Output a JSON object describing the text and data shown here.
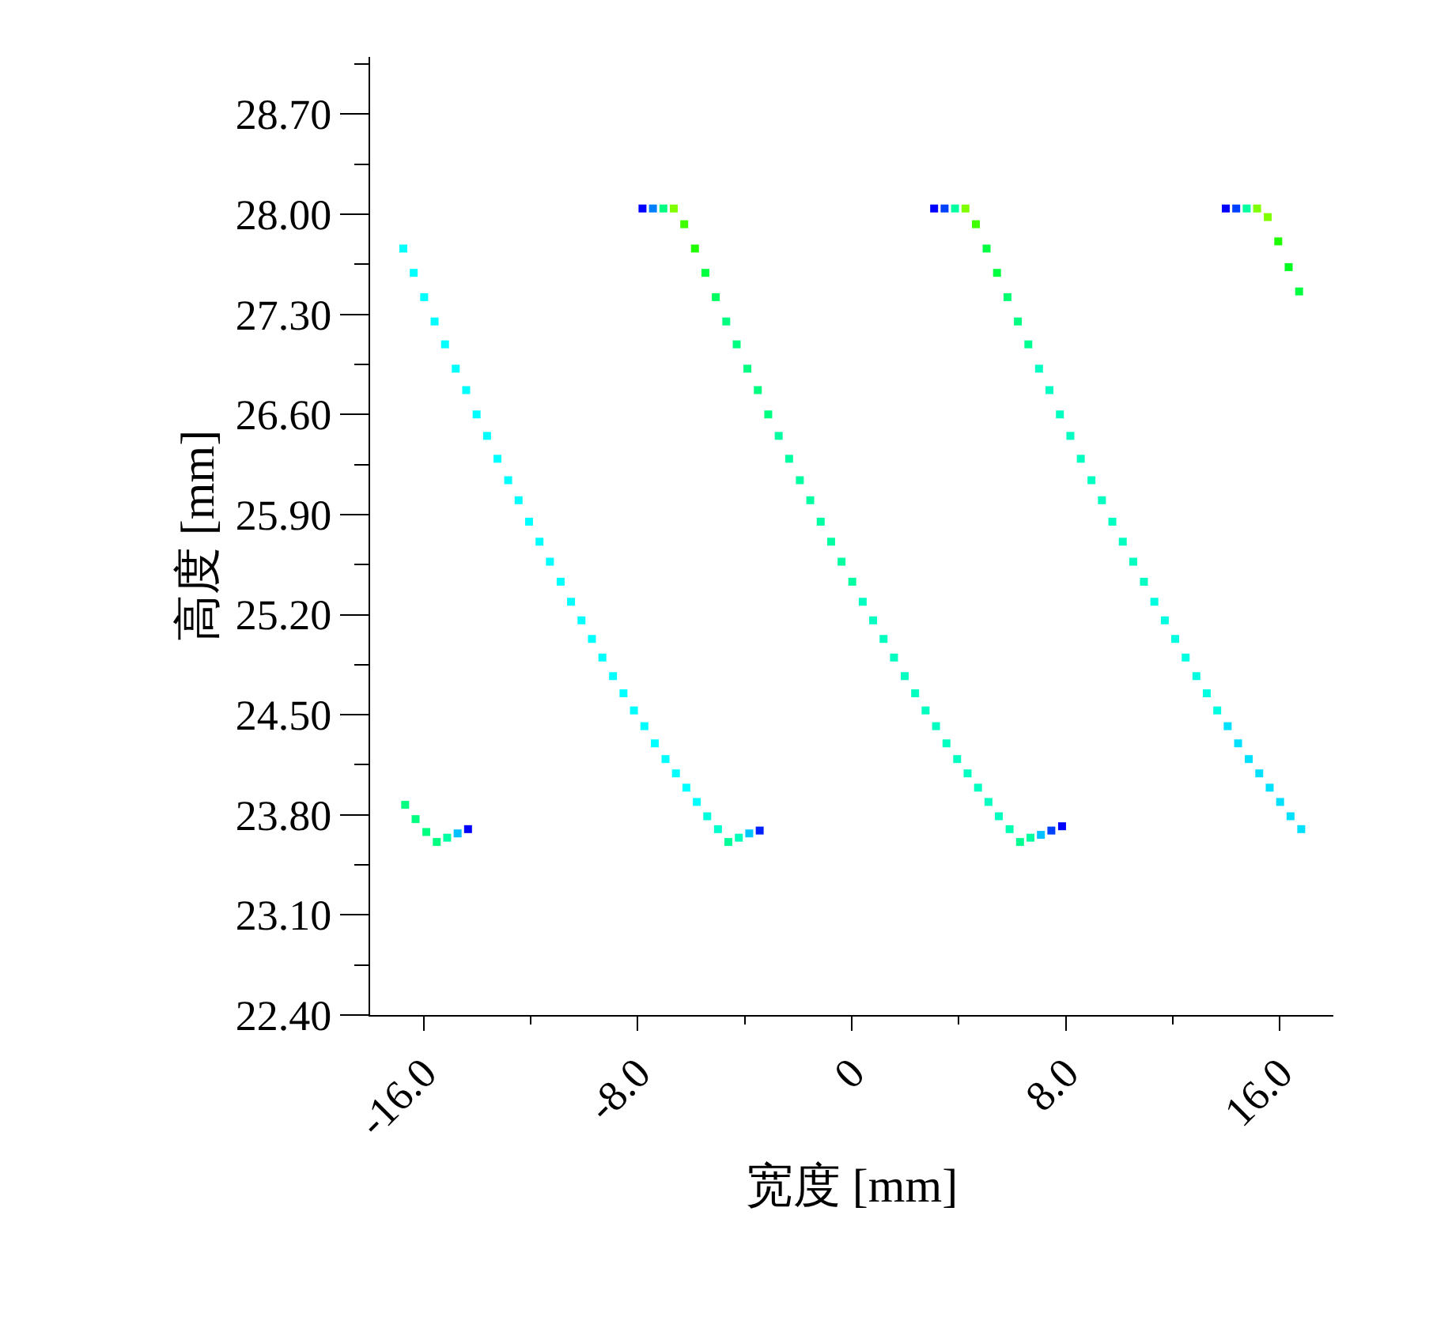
{
  "chart_data": {
    "type": "scatter",
    "xlabel": "宽度 [mm]",
    "ylabel": "高度 [mm]",
    "xlim": [
      -18,
      18
    ],
    "xticks": [
      {
        "value": -16,
        "label": "-16.0"
      },
      {
        "value": -12,
        "label": null
      },
      {
        "value": -8,
        "label": "-8.0"
      },
      {
        "value": -4,
        "label": null
      },
      0,
      {
        "value": 4,
        "label": null
      },
      {
        "value": 8,
        "label": "8.0"
      },
      {
        "value": 12,
        "label": null
      },
      {
        "value": 16,
        "label": "16.0"
      }
    ],
    "ylim": [
      22.4,
      29.1
    ],
    "yticks": [
      {
        "value": 22.4,
        "label": "22.40"
      },
      {
        "value": 22.75,
        "label": null
      },
      {
        "value": 23.1,
        "label": "23.10"
      },
      {
        "value": 23.45,
        "label": null
      },
      {
        "value": 23.8,
        "label": "23.80"
      },
      {
        "value": 24.15,
        "label": null
      },
      {
        "value": 24.5,
        "label": "24.50"
      },
      {
        "value": 24.85,
        "label": null
      },
      {
        "value": 25.2,
        "label": "25.20"
      },
      {
        "value": 25.55,
        "label": null
      },
      {
        "value": 25.9,
        "label": "25.90"
      },
      {
        "value": 26.25,
        "label": null
      },
      {
        "value": 26.6,
        "label": "26.60"
      },
      {
        "value": 26.95,
        "label": null
      },
      {
        "value": 27.3,
        "label": "27.30"
      },
      {
        "value": 27.65,
        "label": null
      },
      {
        "value": 28.0,
        "label": "28.00"
      },
      {
        "value": 28.35,
        "label": null
      },
      {
        "value": 28.7,
        "label": "28.70"
      },
      {
        "value": 29.05,
        "label": null
      }
    ],
    "marker": "square",
    "series": [
      {
        "x": [
          -16.69,
          -16.3,
          -15.9,
          -15.51,
          -15.12,
          -14.73,
          -14.34
        ],
        "values": [
          23.87,
          23.77,
          23.68,
          23.61,
          23.64,
          23.67,
          23.7
        ],
        "colors": [
          "#00ff80",
          "#00ff80",
          "#00ff80",
          "#00ff80",
          "#00ffa0",
          "#00c0ff",
          "#0000ff"
        ]
      },
      {
        "x": [
          -16.76,
          -16.37,
          -15.98,
          -15.59,
          -15.2,
          -14.8,
          -14.41,
          -14.02,
          -13.63,
          -13.24,
          -12.84,
          -12.45,
          -12.06,
          -11.67,
          -11.28,
          -10.88,
          -10.49,
          -10.1,
          -9.71,
          -9.32,
          -8.92,
          -8.53,
          -8.14,
          -7.75,
          -7.36,
          -6.96,
          -6.57,
          -6.18,
          -5.79,
          -5.4,
          -5.0,
          -4.61,
          -4.22,
          -3.83,
          -3.44
        ],
        "values": [
          27.76,
          27.59,
          27.42,
          27.25,
          27.09,
          26.92,
          26.77,
          26.6,
          26.45,
          26.29,
          26.14,
          26.0,
          25.85,
          25.71,
          25.57,
          25.43,
          25.29,
          25.16,
          25.03,
          24.9,
          24.77,
          24.65,
          24.53,
          24.42,
          24.3,
          24.19,
          24.09,
          23.99,
          23.89,
          23.79,
          23.7,
          23.61,
          23.64,
          23.67,
          23.69
        ],
        "colors": [
          "#00ffff",
          "#00ffff",
          "#00ffff",
          "#00ffff",
          "#00ffff",
          "#00ffff",
          "#00ffff",
          "#00ffff",
          "#00ffff",
          "#00ffff",
          "#00ffff",
          "#00ffff",
          "#00ffff",
          "#00ffff",
          "#00ffff",
          "#00ffff",
          "#00ffff",
          "#00ffff",
          "#00ffff",
          "#00ffff",
          "#00ffff",
          "#00ffff",
          "#00ffff",
          "#00ffff",
          "#00ffff",
          "#00ffff",
          "#00ffff",
          "#00ffff",
          "#00ffff",
          "#00ffdd",
          "#00ffcc",
          "#00ff99",
          "#00ffbb",
          "#00c8ff",
          "#0020ff"
        ]
      },
      {
        "x": [
          -7.82,
          -7.43,
          -7.04,
          -6.65,
          -6.26,
          -5.86,
          -5.47,
          -5.08,
          -4.69,
          -4.3,
          -3.9,
          -3.51,
          -3.12,
          -2.73,
          -2.34,
          -1.94,
          -1.55,
          -1.16,
          -0.77,
          -0.38,
          0.02,
          0.41,
          0.8,
          1.19,
          1.58,
          1.98,
          2.37,
          2.76,
          3.15,
          3.54,
          3.94,
          4.33,
          4.72,
          5.11,
          5.5,
          5.9,
          6.29,
          6.68,
          7.07,
          7.46,
          7.86
        ],
        "values": [
          28.04,
          28.04,
          28.04,
          28.04,
          27.93,
          27.76,
          27.59,
          27.42,
          27.25,
          27.09,
          26.92,
          26.77,
          26.6,
          26.45,
          26.29,
          26.14,
          26.0,
          25.85,
          25.71,
          25.57,
          25.43,
          25.29,
          25.16,
          25.03,
          24.9,
          24.77,
          24.65,
          24.53,
          24.42,
          24.3,
          24.19,
          24.09,
          23.99,
          23.89,
          23.79,
          23.7,
          23.61,
          23.64,
          23.66,
          23.69,
          23.72
        ],
        "colors": [
          "#0000ff",
          "#0080ff",
          "#00ff80",
          "#80ff00",
          "#40ff00",
          "#20ff00",
          "#00ff40",
          "#00ff60",
          "#00ff80",
          "#00ff80",
          "#00ff80",
          "#00ff80",
          "#00ff80",
          "#00ffa0",
          "#00ffa0",
          "#00ffa0",
          "#00ffa0",
          "#00ffa0",
          "#00ffa0",
          "#00ffa0",
          "#00ffa0",
          "#00ffc0",
          "#00ffc0",
          "#00ffc0",
          "#00ffc0",
          "#00ffc0",
          "#00ffc0",
          "#00ffc0",
          "#00ffc0",
          "#00ffc0",
          "#00ffc0",
          "#00ffc0",
          "#00ffc0",
          "#00ffc0",
          "#00ffc0",
          "#00ffb0",
          "#00ff90",
          "#00ffa0",
          "#00c0ff",
          "#0040ff",
          "#0000ff"
        ]
      },
      {
        "x": [
          3.08,
          3.47,
          3.86,
          4.25,
          4.64,
          5.04,
          5.43,
          5.82,
          6.21,
          6.6,
          7.0,
          7.39,
          7.78,
          8.17,
          8.56,
          8.96,
          9.35,
          9.74,
          10.13,
          10.52,
          10.92,
          11.31,
          11.7,
          12.09,
          12.48,
          12.88,
          13.27,
          13.66,
          14.05,
          14.44,
          14.84,
          15.23,
          15.62,
          16.01,
          16.4,
          16.8
        ],
        "values": [
          28.04,
          28.04,
          28.04,
          28.04,
          27.93,
          27.76,
          27.59,
          27.42,
          27.25,
          27.09,
          26.92,
          26.77,
          26.6,
          26.45,
          26.29,
          26.14,
          26.0,
          25.85,
          25.71,
          25.57,
          25.43,
          25.29,
          25.16,
          25.03,
          24.9,
          24.77,
          24.65,
          24.53,
          24.42,
          24.3,
          24.19,
          24.09,
          23.99,
          23.89,
          23.79,
          23.7
        ],
        "colors": [
          "#0000ff",
          "#0040ff",
          "#00ffa0",
          "#80ff00",
          "#40ff00",
          "#00ff40",
          "#00ff40",
          "#00ff70",
          "#00ff80",
          "#00ff90",
          "#00ffc0",
          "#00ffc0",
          "#00ffc0",
          "#00ffc0",
          "#00ffc0",
          "#00ffc0",
          "#00ffc0",
          "#00ffc0",
          "#00ffc0",
          "#00ffc0",
          "#00ffc0",
          "#00ffe0",
          "#00ffe0",
          "#00ffe0",
          "#00ffe0",
          "#00ffe0",
          "#00ffe0",
          "#00ffe0",
          "#00e0ff",
          "#00e0ff",
          "#00e0ff",
          "#00e0ff",
          "#00e0ff",
          "#00e0ff",
          "#00e0ff",
          "#00e0ff"
        ]
      },
      {
        "x": [
          13.98,
          14.37,
          14.76,
          15.15,
          15.55,
          15.94,
          16.33,
          16.72
        ],
        "values": [
          28.04,
          28.04,
          28.04,
          28.04,
          27.98,
          27.81,
          27.63,
          27.46
        ],
        "colors": [
          "#0000ff",
          "#0040ff",
          "#00ffa0",
          "#80ff00",
          "#80ff00",
          "#20ff00",
          "#00ff20",
          "#00ff40"
        ]
      }
    ]
  }
}
